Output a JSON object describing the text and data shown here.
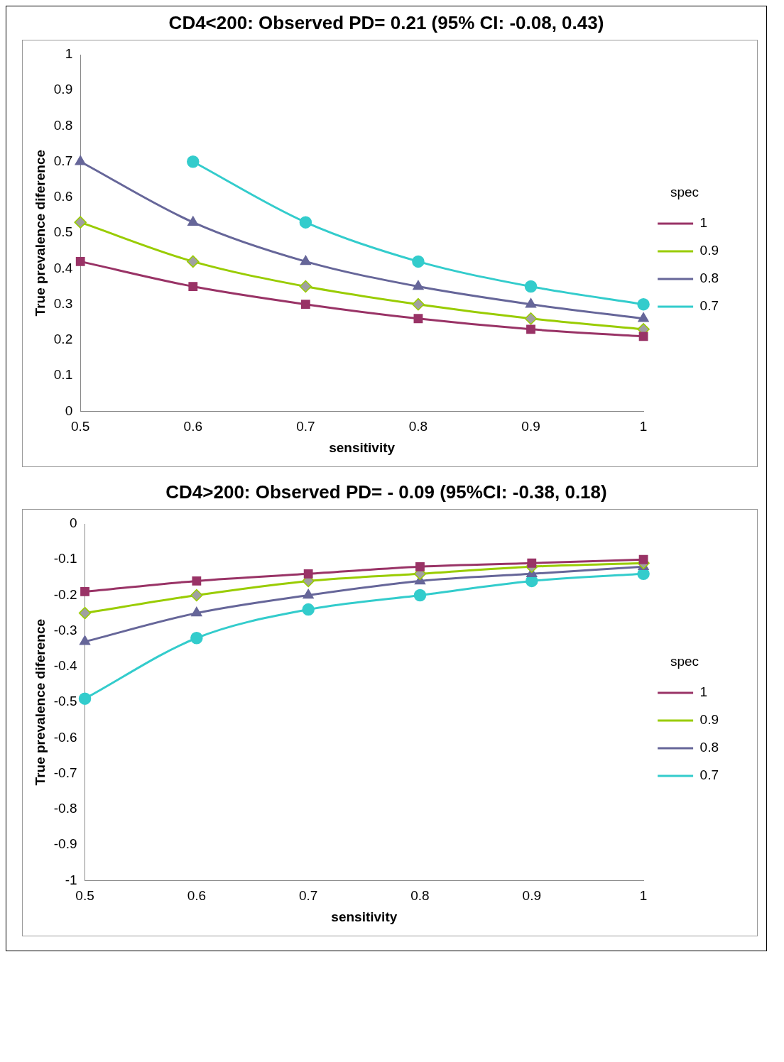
{
  "chart_data": [
    {
      "type": "line",
      "title": "CD4<200: Observed PD= 0.21 (95% CI: -0.08, 0.43)",
      "xlabel": "sensitivity",
      "ylabel": "True prevalence diference",
      "legend_title": "spec",
      "legend": "right",
      "grid": false,
      "x": [
        0.5,
        0.6,
        0.7,
        0.8,
        0.9,
        1
      ],
      "xlim": [
        0.5,
        1
      ],
      "xticks": [
        0.5,
        0.6,
        0.7,
        0.8,
        0.9,
        1
      ],
      "ylim": [
        0,
        1
      ],
      "yticks": [
        0,
        0.1,
        0.2,
        0.3,
        0.4,
        0.5,
        0.6,
        0.7,
        0.8,
        0.9,
        1
      ],
      "series": [
        {
          "name": "1",
          "color": "#993366",
          "marker": "square",
          "values": [
            0.42,
            0.35,
            0.3,
            0.26,
            0.23,
            0.21
          ]
        },
        {
          "name": "0.9",
          "color": "#99cc00",
          "marker": "diamond",
          "values": [
            0.53,
            0.42,
            0.35,
            0.3,
            0.26,
            0.23
          ]
        },
        {
          "name": "0.8",
          "color": "#666699",
          "marker": "triangle",
          "values": [
            0.7,
            0.53,
            0.42,
            0.35,
            0.3,
            0.26
          ]
        },
        {
          "name": "0.7",
          "color": "#33cccc",
          "marker": "circle",
          "values": [
            null,
            0.7,
            0.53,
            0.42,
            0.35,
            0.3
          ]
        }
      ]
    },
    {
      "type": "line",
      "title": "CD4>200: Observed PD= - 0.09 (95%CI: -0.38, 0.18)",
      "xlabel": "sensitivity",
      "ylabel": "True prevalence diference",
      "legend_title": "spec",
      "legend": "right",
      "grid": false,
      "x": [
        0.5,
        0.6,
        0.7,
        0.8,
        0.9,
        1
      ],
      "xlim": [
        0.5,
        1
      ],
      "xticks": [
        0.5,
        0.6,
        0.7,
        0.8,
        0.9,
        1
      ],
      "ylim": [
        -1,
        0
      ],
      "yticks": [
        -1,
        -0.9,
        -0.8,
        -0.7,
        -0.6,
        -0.5,
        -0.4,
        -0.3,
        -0.2,
        -0.1,
        0
      ],
      "series": [
        {
          "name": "1",
          "color": "#993366",
          "marker": "square",
          "values": [
            -0.19,
            -0.16,
            -0.14,
            -0.12,
            -0.11,
            -0.1
          ]
        },
        {
          "name": "0.9",
          "color": "#99cc00",
          "marker": "diamond",
          "values": [
            -0.25,
            -0.2,
            -0.16,
            -0.14,
            -0.12,
            -0.11
          ]
        },
        {
          "name": "0.8",
          "color": "#666699",
          "marker": "triangle",
          "values": [
            -0.33,
            -0.25,
            -0.2,
            -0.16,
            -0.14,
            -0.12
          ]
        },
        {
          "name": "0.7",
          "color": "#33cccc",
          "marker": "circle",
          "values": [
            -0.49,
            -0.32,
            -0.24,
            -0.2,
            -0.16,
            -0.14
          ]
        }
      ]
    }
  ]
}
